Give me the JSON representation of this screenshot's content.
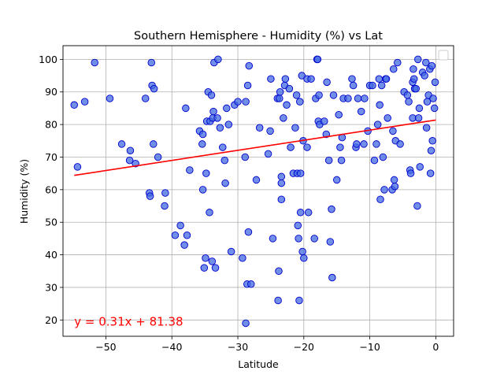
{
  "chart_data": {
    "type": "scatter",
    "title": "Southern Hemisphere - Humidity (%) vs Lat",
    "xlabel": "Latitude",
    "ylabel": "Humidity (%)",
    "xlim": [
      -56.5,
      2.7
    ],
    "ylim": [
      15,
      104.2
    ],
    "x_ticks": [
      -50,
      -40,
      -30,
      -20,
      -10,
      0
    ],
    "y_ticks": [
      20,
      30,
      40,
      50,
      60,
      70,
      80,
      90,
      100
    ],
    "grid": true,
    "legend_placement": "upper right",
    "colors": {
      "marker_face": "#4169E1",
      "marker_edge": "#0000CD",
      "regression_line": "#FF0000",
      "grid": "#B0B0B0",
      "annotation": "#FF0000"
    },
    "regression": {
      "slope": 0.31,
      "intercept": 81.38,
      "x_range": [
        -54.8,
        0
      ],
      "equation": "y = 0.31x + 81.38",
      "equation_position": {
        "x": -54.8,
        "y": 19.5
      }
    },
    "points": [
      [
        -54.8,
        86
      ],
      [
        -54.3,
        67
      ],
      [
        -53.2,
        87
      ],
      [
        -51.7,
        99
      ],
      [
        -49.4,
        88
      ],
      [
        -47.6,
        74
      ],
      [
        -46.4,
        69
      ],
      [
        -46.3,
        72
      ],
      [
        -45.5,
        68
      ],
      [
        -44.0,
        88
      ],
      [
        -43.4,
        59
      ],
      [
        -43.3,
        58
      ],
      [
        -43.1,
        99
      ],
      [
        -43.0,
        92
      ],
      [
        -42.8,
        74
      ],
      [
        -42.7,
        91
      ],
      [
        -42.1,
        70
      ],
      [
        -41.1,
        55
      ],
      [
        -41.0,
        59
      ],
      [
        -39.5,
        46
      ],
      [
        -38.7,
        49
      ],
      [
        -38.1,
        43
      ],
      [
        -37.9,
        85
      ],
      [
        -37.7,
        46
      ],
      [
        -37.3,
        66
      ],
      [
        -35.8,
        78
      ],
      [
        -35.4,
        74
      ],
      [
        -35.3,
        77
      ],
      [
        -35.3,
        60
      ],
      [
        -35.1,
        36
      ],
      [
        -34.9,
        39
      ],
      [
        -34.8,
        65
      ],
      [
        -34.7,
        81
      ],
      [
        -34.5,
        90
      ],
      [
        -34.3,
        53
      ],
      [
        -34.2,
        81
      ],
      [
        -34.0,
        89
      ],
      [
        -33.9,
        38
      ],
      [
        -33.8,
        82
      ],
      [
        -33.7,
        84
      ],
      [
        -33.6,
        99
      ],
      [
        -33.4,
        36
      ],
      [
        -33.1,
        82
      ],
      [
        -33.0,
        100
      ],
      [
        -32.7,
        79
      ],
      [
        -32.3,
        73
      ],
      [
        -32.0,
        69
      ],
      [
        -31.9,
        62
      ],
      [
        -31.7,
        85
      ],
      [
        -31.4,
        80
      ],
      [
        -31.0,
        41
      ],
      [
        -30.5,
        86
      ],
      [
        -30.0,
        87
      ],
      [
        -29.3,
        39
      ],
      [
        -28.9,
        70
      ],
      [
        -28.8,
        87
      ],
      [
        -28.8,
        19
      ],
      [
        -28.6,
        31
      ],
      [
        -28.5,
        92
      ],
      [
        -28.4,
        47
      ],
      [
        -28.3,
        98
      ],
      [
        -28.0,
        31
      ],
      [
        -27.2,
        63
      ],
      [
        -26.7,
        79
      ],
      [
        -25.4,
        71
      ],
      [
        -25.1,
        78
      ],
      [
        -25.0,
        94
      ],
      [
        -24.7,
        45
      ],
      [
        -24.0,
        88
      ],
      [
        -23.9,
        26
      ],
      [
        -23.8,
        35
      ],
      [
        -23.7,
        88
      ],
      [
        -23.6,
        90
      ],
      [
        -23.4,
        57
      ],
      [
        -23.4,
        64
      ],
      [
        -23.4,
        62
      ],
      [
        -23.1,
        82
      ],
      [
        -22.9,
        92
      ],
      [
        -22.8,
        94
      ],
      [
        -22.6,
        86
      ],
      [
        -22.2,
        91
      ],
      [
        -22.0,
        73
      ],
      [
        -21.6,
        65
      ],
      [
        -21.3,
        79
      ],
      [
        -21.1,
        89
      ],
      [
        -21.0,
        65
      ],
      [
        -20.9,
        49
      ],
      [
        -20.8,
        45
      ],
      [
        -20.7,
        26
      ],
      [
        -20.6,
        87
      ],
      [
        -20.5,
        53
      ],
      [
        -20.5,
        65
      ],
      [
        -20.3,
        95
      ],
      [
        -20.2,
        41
      ],
      [
        -20.1,
        75
      ],
      [
        -20.0,
        39
      ],
      [
        -19.5,
        94
      ],
      [
        -19.5,
        73
      ],
      [
        -19.3,
        53
      ],
      [
        -18.9,
        94
      ],
      [
        -18.4,
        45
      ],
      [
        -18.2,
        88
      ],
      [
        -18.0,
        100
      ],
      [
        -17.9,
        100
      ],
      [
        -17.8,
        81
      ],
      [
        -17.7,
        89
      ],
      [
        -17.6,
        80
      ],
      [
        -16.9,
        81
      ],
      [
        -16.6,
        77
      ],
      [
        -16.5,
        93
      ],
      [
        -16.2,
        69
      ],
      [
        -16.0,
        44
      ],
      [
        -15.8,
        54
      ],
      [
        -15.7,
        33
      ],
      [
        -15.5,
        89
      ],
      [
        -15.0,
        63
      ],
      [
        -14.7,
        83
      ],
      [
        -14.5,
        73
      ],
      [
        -14.3,
        69
      ],
      [
        -14.2,
        76
      ],
      [
        -14.0,
        88
      ],
      [
        -13.3,
        88
      ],
      [
        -12.7,
        94
      ],
      [
        -12.5,
        92
      ],
      [
        -12.1,
        73
      ],
      [
        -12.0,
        74
      ],
      [
        -11.8,
        88
      ],
      [
        -11.3,
        84
      ],
      [
        -10.9,
        74
      ],
      [
        -10.8,
        88
      ],
      [
        -10.3,
        78
      ],
      [
        -10.0,
        92
      ],
      [
        -9.6,
        92
      ],
      [
        -9.3,
        69
      ],
      [
        -9.0,
        74
      ],
      [
        -8.8,
        80
      ],
      [
        -8.6,
        94
      ],
      [
        -8.5,
        86
      ],
      [
        -8.4,
        57
      ],
      [
        -8.2,
        92
      ],
      [
        -8.0,
        70
      ],
      [
        -7.8,
        60
      ],
      [
        -7.6,
        94
      ],
      [
        -7.5,
        94
      ],
      [
        -7.3,
        82
      ],
      [
        -6.6,
        60
      ],
      [
        -6.5,
        78
      ],
      [
        -6.4,
        97
      ],
      [
        -6.3,
        63
      ],
      [
        -6.2,
        61
      ],
      [
        -6.1,
        75
      ],
      [
        -5.8,
        99
      ],
      [
        -5.4,
        74
      ],
      [
        -4.8,
        90
      ],
      [
        -4.3,
        89
      ],
      [
        -4.1,
        87
      ],
      [
        -3.9,
        66
      ],
      [
        -3.8,
        65
      ],
      [
        -3.5,
        82
      ],
      [
        -3.5,
        93
      ],
      [
        -3.4,
        97
      ],
      [
        -3.3,
        94
      ],
      [
        -3.2,
        91
      ],
      [
        -3.0,
        91
      ],
      [
        -2.8,
        55
      ],
      [
        -2.7,
        100
      ],
      [
        -2.6,
        82
      ],
      [
        -2.5,
        85
      ],
      [
        -2.4,
        67
      ],
      [
        -2.0,
        96
      ],
      [
        -1.7,
        95
      ],
      [
        -1.5,
        99
      ],
      [
        -1.4,
        79
      ],
      [
        -1.3,
        87
      ],
      [
        -1.1,
        89
      ],
      [
        -0.9,
        97
      ],
      [
        -0.8,
        65
      ],
      [
        -0.7,
        72
      ],
      [
        -0.6,
        98
      ],
      [
        -0.5,
        75
      ],
      [
        -0.4,
        88
      ],
      [
        -0.2,
        85
      ],
      [
        -0.1,
        93
      ]
    ]
  }
}
